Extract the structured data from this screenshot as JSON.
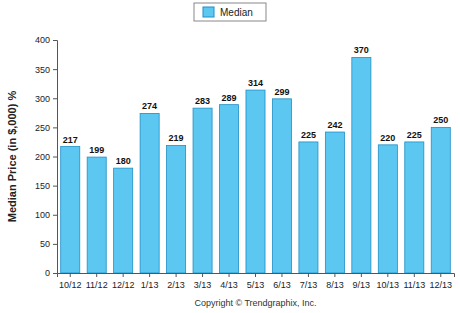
{
  "chart_data": {
    "type": "bar",
    "ylabel": "Median Price (in $,000) %",
    "categories": [
      "10/12",
      "11/12",
      "12/12",
      "1/13",
      "2/13",
      "3/13",
      "4/13",
      "5/13",
      "6/13",
      "7/13",
      "8/13",
      "9/13",
      "10/13",
      "11/13",
      "12/13"
    ],
    "series": [
      {
        "name": "Median",
        "color": "#5cc8f2",
        "values": [
          217,
          199,
          180,
          274,
          219,
          283,
          289,
          314,
          299,
          225,
          242,
          370,
          220,
          225,
          250
        ]
      }
    ],
    "ylim": [
      0,
      400
    ],
    "yticks": [
      0,
      50,
      100,
      150,
      200,
      250,
      300,
      350,
      400
    ],
    "grid": false,
    "legend": "top",
    "data_labels": true,
    "annotations": [
      "Copyright © Trendgraphix, Inc."
    ]
  }
}
